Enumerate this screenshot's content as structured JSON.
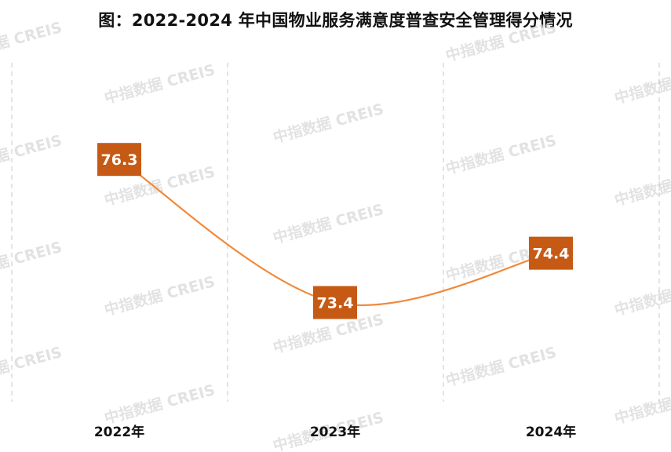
{
  "watermark": "中指数据 CREIS",
  "colors": {
    "line": "#f08a3c",
    "label_box": "#c65a14",
    "gridline": "#c8c8c8"
  },
  "chart_data": {
    "type": "line",
    "title": "图：2022-2024 年中国物业服务满意度普查安全管理得分情况",
    "categories": [
      "2022年",
      "2023年",
      "2024年"
    ],
    "values": [
      76.3,
      73.4,
      74.4
    ],
    "data_labels": [
      "76.3",
      "73.4",
      "74.4"
    ],
    "xlabel": "",
    "ylabel": "",
    "ylim": [
      71.5,
      78.1
    ],
    "smooth": true,
    "y_axis_visible": false,
    "grid": "vertical dashed"
  }
}
